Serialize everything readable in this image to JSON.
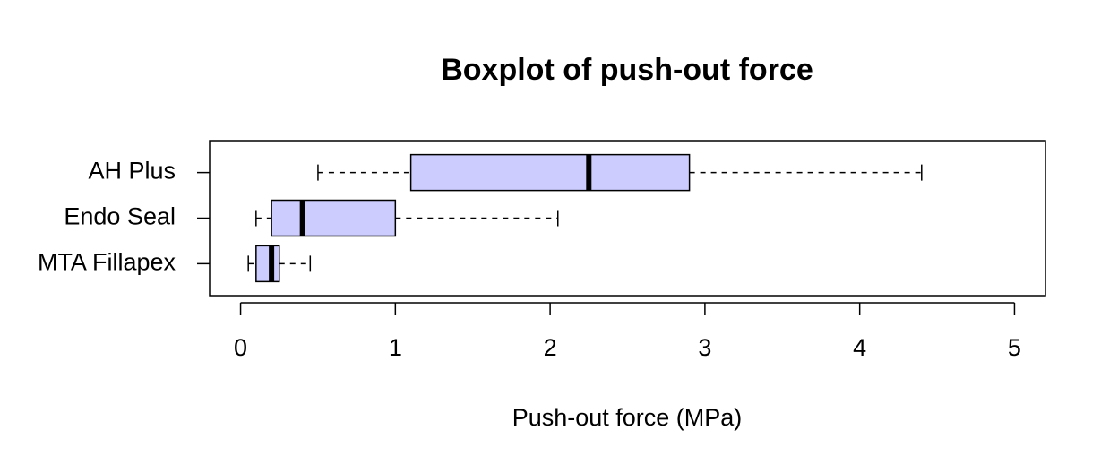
{
  "chart_data": {
    "type": "boxplot",
    "orientation": "horizontal",
    "title": "Boxplot of push-out force",
    "xlabel": "Push-out force (MPa)",
    "categories": [
      "AH Plus",
      "Endo Seal",
      "MTA Fillapex"
    ],
    "whislo": [
      0.5,
      0.1,
      0.05
    ],
    "q1": [
      1.1,
      0.2,
      0.1
    ],
    "median": [
      2.25,
      0.4,
      0.2
    ],
    "q3": [
      2.9,
      1.0,
      0.25
    ],
    "whishi": [
      4.4,
      2.05,
      0.45
    ],
    "color": "#ccccff",
    "xlim": [
      -0.2,
      5.2
    ],
    "xticks": [
      0,
      1,
      2,
      3,
      4,
      5
    ]
  }
}
